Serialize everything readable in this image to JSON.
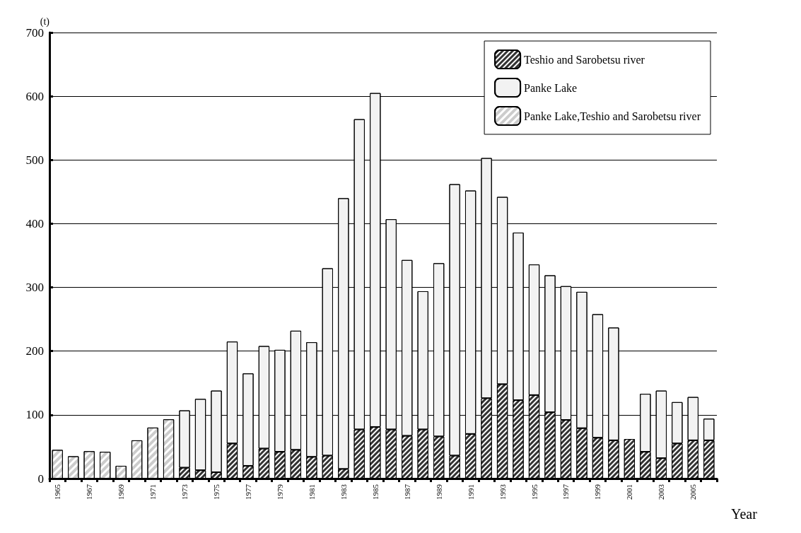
{
  "chart_data": {
    "type": "bar",
    "stacked": true,
    "ylabel": "(t)",
    "xlabel": "Year",
    "categories": [
      "1965",
      null,
      "1967",
      null,
      "1969",
      null,
      "1971",
      null,
      "1973",
      null,
      "1975",
      null,
      "1977",
      null,
      "1979",
      null,
      "1981",
      null,
      "1983",
      null,
      "1985",
      null,
      "1987",
      null,
      "1989",
      null,
      "1991",
      null,
      "1993",
      null,
      "1995",
      null,
      "1997",
      null,
      "1999",
      null,
      "2001",
      null,
      "2003",
      null,
      "2005",
      null
    ],
    "series": [
      {
        "name": "Teshio and Sarobetsu river",
        "color": "#333333",
        "values": [
          null,
          null,
          null,
          null,
          null,
          null,
          null,
          null,
          17,
          13,
          10,
          55,
          20,
          47,
          42,
          45,
          34,
          36,
          15,
          77,
          81,
          77,
          67,
          77,
          66,
          36,
          70,
          126,
          148,
          123,
          131,
          104,
          92,
          79,
          64,
          60,
          62,
          42,
          32,
          55,
          60,
          60
        ]
      },
      {
        "name": "Panke Lake",
        "color": "#f2f2f2",
        "values": [
          null,
          null,
          null,
          null,
          null,
          null,
          null,
          null,
          90,
          112,
          128,
          160,
          145,
          161,
          160,
          187,
          180,
          294,
          425,
          487,
          524,
          330,
          276,
          217,
          272,
          426,
          382,
          377,
          294,
          263,
          205,
          215,
          210,
          214,
          194,
          177,
          null,
          91,
          106,
          65,
          68,
          34
        ]
      },
      {
        "name": "Panke Lake,Teshio and Sarobetsu river",
        "color": "#ffffff",
        "values": [
          45,
          35,
          43,
          42,
          20,
          60,
          80,
          93,
          null,
          null,
          null,
          null,
          null,
          null,
          null,
          null,
          null,
          null,
          null,
          null,
          null,
          null,
          null,
          null,
          null,
          null,
          null,
          null,
          null,
          null,
          null,
          null,
          null,
          null,
          null,
          null,
          null,
          null,
          null,
          null,
          null,
          null
        ]
      }
    ],
    "ylim": [
      0,
      700
    ],
    "yticks": [
      0,
      100,
      200,
      300,
      400,
      500,
      600,
      700
    ],
    "grid": "y",
    "legend": "top right"
  }
}
